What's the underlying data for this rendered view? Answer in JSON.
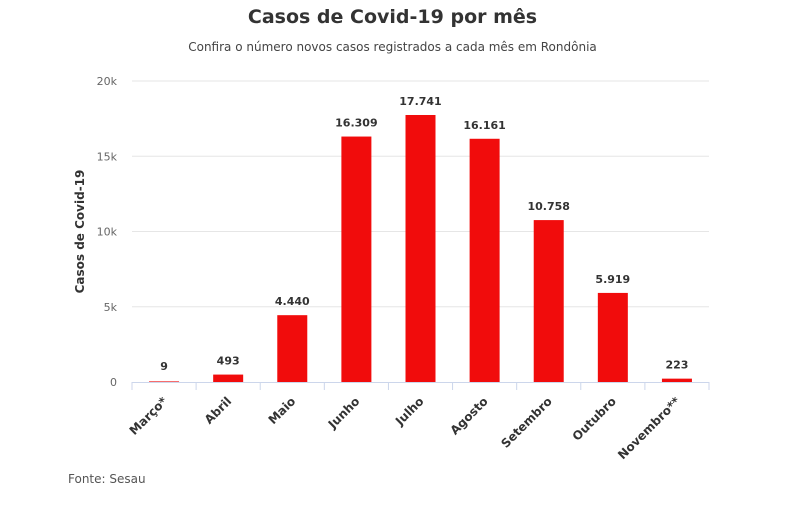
{
  "chart_data": {
    "type": "bar",
    "title": "Casos de Covid-19 por mês",
    "subtitle": "Confira o número novos casos registrados a cada mês em Rondônia",
    "ylabel": "Casos de Covid-19",
    "xlabel": "",
    "categories": [
      "Março*",
      "Abril",
      "Maio",
      "Junho",
      "Julho",
      "Agosto",
      "Setembro",
      "Outubro",
      "Novembro**"
    ],
    "values": [
      9,
      493,
      4440,
      16309,
      17741,
      16161,
      10758,
      5919,
      223
    ],
    "value_labels": [
      "9",
      "493",
      "4.440",
      "16.309",
      "17.741",
      "16.161",
      "10.758",
      "5.919",
      "223"
    ],
    "ylim": [
      0,
      20000
    ],
    "yticks": [
      0,
      5000,
      10000,
      15000,
      20000
    ],
    "ytick_labels": [
      "0",
      "5k",
      "10k",
      "15k",
      "20k"
    ],
    "bar_color": "#f10c0c",
    "grid": true,
    "legend": "none"
  },
  "source": "Fonte: Sesau"
}
